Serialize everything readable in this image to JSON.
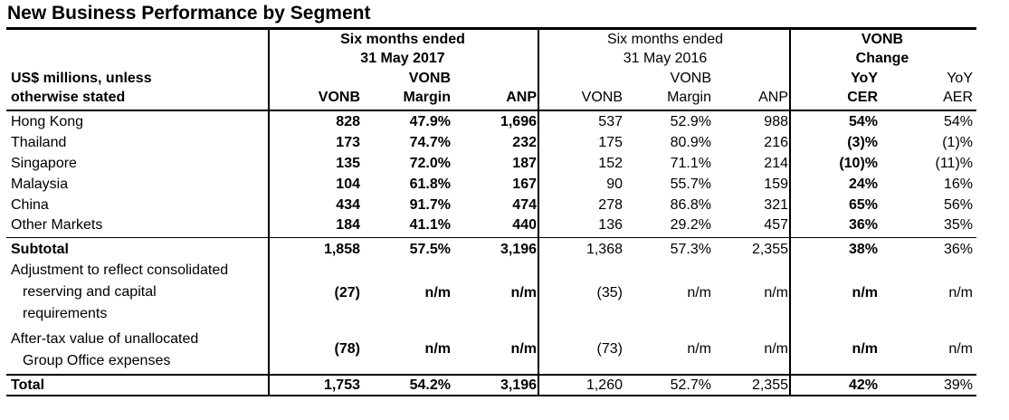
{
  "title": "New Business Performance by Segment",
  "header": {
    "group_2017_line1": "Six months ended",
    "group_2017_line2": "31 May 2017",
    "group_2016_line1": "Six months ended",
    "group_2016_line2": "31 May 2016",
    "change_line1": "VONB",
    "change_line2": "Change",
    "stub_line1": "US$ millions, unless",
    "stub_line2": "otherwise stated",
    "vonb_top_2017": "VONB",
    "vonb_top_2016": "VONB",
    "col_vonb_2017": "VONB",
    "col_margin_2017": "Margin",
    "col_anp_2017": "ANP",
    "col_vonb_2016": "VONB",
    "col_margin_2016": "Margin",
    "col_anp_2016": "ANP",
    "yoy_cer_top": "YoY",
    "col_cer": "CER",
    "yoy_aer_top": "YoY",
    "col_aer": "AER"
  },
  "rows": [
    {
      "label": [
        "Hong Kong"
      ],
      "values": [
        "828",
        "47.9%",
        "1,696",
        "537",
        "52.9%",
        "988",
        "54%",
        "54%"
      ]
    },
    {
      "label": [
        "Thailand"
      ],
      "values": [
        "173",
        "74.7%",
        "232",
        "175",
        "80.9%",
        "216",
        "(3)%",
        "(1)%"
      ]
    },
    {
      "label": [
        "Singapore"
      ],
      "values": [
        "135",
        "72.0%",
        "187",
        "152",
        "71.1%",
        "214",
        "(10)%",
        "(11)%"
      ]
    },
    {
      "label": [
        "Malaysia"
      ],
      "values": [
        "104",
        "61.8%",
        "167",
        "90",
        "55.7%",
        "159",
        "24%",
        "16%"
      ]
    },
    {
      "label": [
        "China"
      ],
      "values": [
        "434",
        "91.7%",
        "474",
        "278",
        "86.8%",
        "321",
        "65%",
        "56%"
      ]
    },
    {
      "label": [
        "Other Markets"
      ],
      "values": [
        "184",
        "41.1%",
        "440",
        "136",
        "29.2%",
        "457",
        "36%",
        "35%"
      ]
    },
    {
      "label": [
        "Subtotal"
      ],
      "values": [
        "1,858",
        "57.5%",
        "3,196",
        "1,368",
        "57.3%",
        "2,355",
        "38%",
        "36%"
      ]
    },
    {
      "label": [
        "Adjustment to reflect consolidated",
        "reserving and capital",
        "requirements"
      ],
      "values": [
        "(27)",
        "n/m",
        "n/m",
        "(35)",
        "n/m",
        "n/m",
        "n/m",
        "n/m"
      ]
    },
    {
      "label": [
        "After-tax value of unallocated",
        "Group Office expenses"
      ],
      "values": [
        "(78)",
        "n/m",
        "n/m",
        "(73)",
        "n/m",
        "n/m",
        "n/m",
        "n/m"
      ]
    },
    {
      "label": [
        "Total"
      ],
      "values": [
        "1,753",
        "54.2%",
        "3,196",
        "1,260",
        "52.7%",
        "2,355",
        "42%",
        "39%"
      ]
    }
  ]
}
